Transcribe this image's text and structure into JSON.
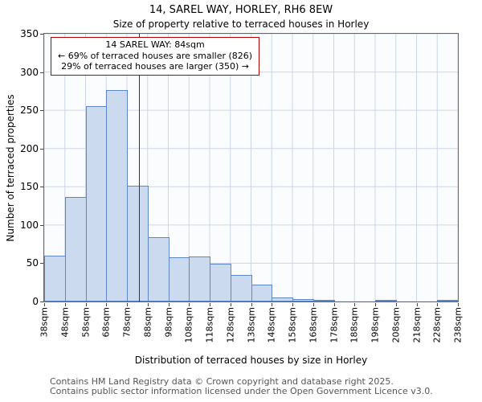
{
  "chart_data": {
    "type": "bar",
    "title": "14, SAREL WAY, HORLEY, RH6 8EW",
    "subtitle": "Size of property relative to terraced houses in Horley",
    "xlabel": "Distribution of terraced houses by size in Horley",
    "ylabel": "Number of terraced properties",
    "x_tick_labels": [
      "38sqm",
      "48sqm",
      "58sqm",
      "68sqm",
      "78sqm",
      "88sqm",
      "98sqm",
      "108sqm",
      "118sqm",
      "128sqm",
      "138sqm",
      "148sqm",
      "158sqm",
      "168sqm",
      "178sqm",
      "188sqm",
      "198sqm",
      "208sqm",
      "218sqm",
      "228sqm",
      "238sqm"
    ],
    "values": [
      60,
      137,
      255,
      276,
      151,
      84,
      58,
      59,
      49,
      35,
      22,
      5,
      3,
      1,
      0,
      0,
      1,
      0,
      0,
      1
    ],
    "bins_sqm": {
      "start": 38,
      "width": 10
    },
    "ylim": [
      0,
      350
    ],
    "ytick_step": 50,
    "grid": true,
    "grid_color": "#ccd6e8",
    "bar_fill": "#ccdaf0",
    "bar_edge": "#5c86c6",
    "legend": null,
    "marker": {
      "value": 84,
      "color": "#b00000",
      "label_lines": [
        "14 SAREL WAY: 84sqm",
        "← 69% of terraced houses are smaller (826)",
        "29% of terraced houses are larger (350) →"
      ]
    }
  },
  "footer": {
    "line1": "Contains HM Land Registry data © Crown copyright and database right 2025.",
    "line2": "Contains public sector information licensed under the Open Government Licence v3.0."
  }
}
